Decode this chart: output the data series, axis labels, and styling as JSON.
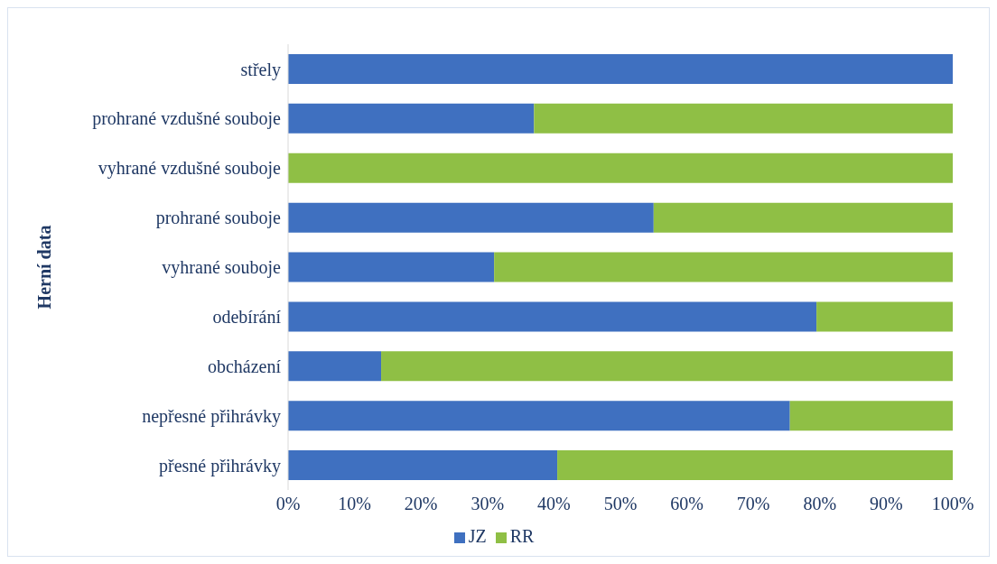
{
  "chart_data": {
    "type": "bar",
    "orientation": "horizontal",
    "stacked": true,
    "ylabel": "Herní data",
    "categories": [
      "střely",
      "prohrané vzdušné souboje",
      "vyhrané vzdušné souboje",
      "prohrané souboje",
      "vyhrané souboje",
      "odebírání",
      "obcházení",
      "nepřesné přihrávky",
      "přesné přihrávky"
    ],
    "series": [
      {
        "name": "JZ",
        "color": "#3f70c0",
        "values": [
          100,
          37,
          0,
          55,
          31,
          79.5,
          14,
          75.5,
          40.5
        ]
      },
      {
        "name": "RR",
        "color": "#8fbf45",
        "values": [
          0,
          63,
          100,
          45,
          69,
          20.5,
          86,
          24.5,
          59.5
        ]
      }
    ],
    "xlim": [
      0,
      100
    ],
    "xticks": [
      {
        "value": 0,
        "label": "0%"
      },
      {
        "value": 10,
        "label": "10%"
      },
      {
        "value": 20,
        "label": "20%"
      },
      {
        "value": 30,
        "label": "30%"
      },
      {
        "value": 40,
        "label": "40%"
      },
      {
        "value": 50,
        "label": "50%"
      },
      {
        "value": 60,
        "label": "60%"
      },
      {
        "value": 70,
        "label": "70%"
      },
      {
        "value": 80,
        "label": "80%"
      },
      {
        "value": 90,
        "label": "90%"
      },
      {
        "value": 100,
        "label": "100%"
      }
    ],
    "grid": false,
    "legend": "bottom"
  }
}
